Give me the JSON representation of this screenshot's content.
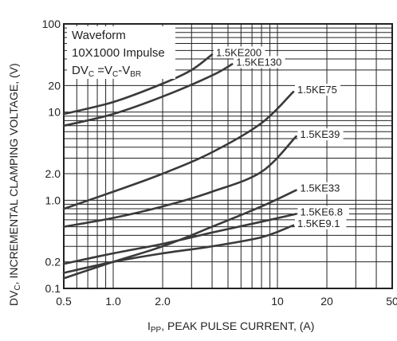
{
  "chart_data": {
    "type": "line",
    "title": "",
    "xlabel": {
      "main": "I",
      "sub": "PP",
      "rest": ", PEAK PULSE CURRENT, (A)"
    },
    "ylabel": {
      "main": "DV",
      "sub": "C",
      "rest": ", INCREMENTAL CLAMPING VOLTAGE, (V)"
    },
    "xscale": "log",
    "yscale": "log",
    "xlim": [
      0.5,
      50
    ],
    "ylim": [
      0.1,
      100
    ],
    "grid": true,
    "xticks": [
      "0.5",
      "1.0",
      "2.0",
      "10",
      "20",
      "50"
    ],
    "xtick_values": [
      0.5,
      1,
      2,
      10,
      20,
      50
    ],
    "yticks": [
      "100",
      "20",
      "10",
      "2.0",
      "1.0",
      "0.2",
      "0.1"
    ],
    "ytick_values": [
      100,
      20,
      10,
      2,
      1,
      0.2,
      0.1
    ],
    "annotation": {
      "line1": "Waveform",
      "line2": "10X1000 Impulse",
      "line3": {
        "a": "DV",
        "a_sub": "C",
        "b": " =V",
        "b_sub": "C",
        "c": "-V",
        "c_sub": "BR"
      }
    },
    "series": [
      {
        "name": "1.5KE200",
        "x": [
          0.5,
          1,
          2,
          3,
          4
        ],
        "y": [
          9.5,
          13,
          21,
          30,
          45
        ]
      },
      {
        "name": "1.5KE130",
        "x": [
          0.5,
          1,
          2,
          4,
          5.3
        ],
        "y": [
          7,
          9.5,
          15,
          26,
          35
        ]
      },
      {
        "name": "1.5KE75",
        "x": [
          0.5,
          1,
          2,
          4,
          8,
          12.5
        ],
        "y": [
          0.8,
          1.25,
          2,
          3.5,
          7.5,
          17
        ]
      },
      {
        "name": "1.5KE39",
        "x": [
          0.5,
          1,
          2,
          4,
          8,
          13
        ],
        "y": [
          0.5,
          0.63,
          0.85,
          1.25,
          2.1,
          5.3
        ]
      },
      {
        "name": "1.5KE33",
        "x": [
          0.5,
          1,
          2,
          4,
          8,
          13
        ],
        "y": [
          0.13,
          0.2,
          0.3,
          0.5,
          0.85,
          1.3
        ]
      },
      {
        "name": "1.5KE6.8",
        "x": [
          0.5,
          1,
          2,
          4,
          8,
          13
        ],
        "y": [
          0.19,
          0.25,
          0.32,
          0.43,
          0.57,
          0.7
        ]
      },
      {
        "name": "1.5KE9.1",
        "x": [
          0.5,
          1,
          2,
          4,
          8,
          12.5
        ],
        "y": [
          0.15,
          0.2,
          0.25,
          0.3,
          0.38,
          0.52
        ]
      }
    ]
  }
}
